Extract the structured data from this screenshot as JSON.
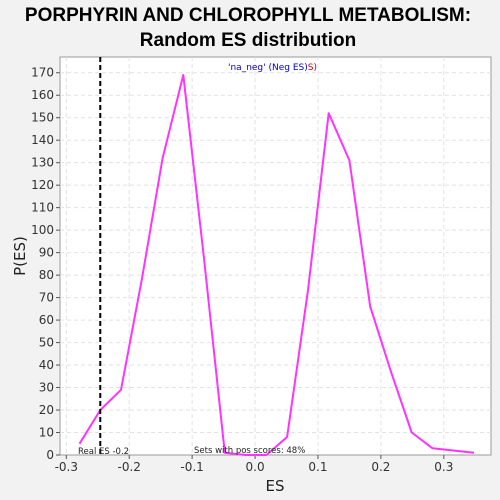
{
  "chart_data": {
    "type": "line",
    "title": "PORPHYRIN AND CHLOROPHYLL METABOLISM:",
    "subtitle": "Random ES distribution",
    "xlabel": "ES",
    "ylabel": "P(ES)",
    "xlim": [
      -0.31,
      0.375
    ],
    "ylim": [
      0,
      177
    ],
    "xticks": [
      -0.3,
      -0.2,
      -0.1,
      0.0,
      0.1,
      0.2,
      0.3
    ],
    "xtick_labels": [
      "-0.3",
      "-0.2",
      "-0.1",
      "0.0",
      "0.1",
      "0.2",
      "0.3"
    ],
    "yticks": [
      0,
      10,
      20,
      30,
      40,
      50,
      60,
      70,
      80,
      90,
      100,
      110,
      120,
      130,
      140,
      150,
      160,
      170
    ],
    "grid": true,
    "series": [
      {
        "color": "#ff33ff",
        "x": [
          -0.279,
          -0.246,
          -0.213,
          -0.18,
          -0.147,
          -0.114,
          -0.081,
          -0.048,
          -0.015,
          0.018,
          0.051,
          0.084,
          0.117,
          0.15,
          0.183,
          0.216,
          0.249,
          0.282,
          0.348
        ],
        "y": [
          5,
          20,
          29,
          78,
          132,
          169,
          87,
          1,
          0,
          0,
          8,
          73,
          152,
          131,
          66,
          37,
          10,
          3,
          1
        ]
      }
    ],
    "real_es": -0.246,
    "annotations": {
      "legend_prefix": "'na_neg' (Neg ES)",
      "legend_suffix": "S)",
      "real_es_label": "Real ES -0.2",
      "pos_scores_label": "Sets with pos scores: 48%"
    },
    "colors": {
      "background": "#f2f2f2",
      "plot_bg": "#ffffff",
      "line": "#ff33ff",
      "grid": "#e2e2e2",
      "legend_blue": "#0000cc",
      "legend_red": "#cc0000"
    }
  }
}
